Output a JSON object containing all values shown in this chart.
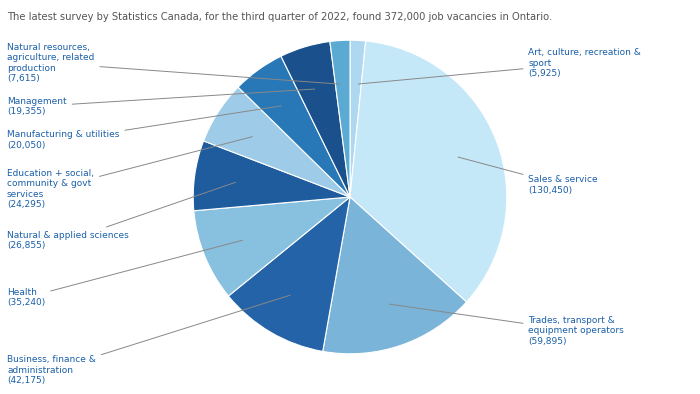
{
  "title": "The latest survey by Statistics Canada, for the third quarter of 2022, found 372,000 job vacancies in Ontario.",
  "sectors": [
    "Art, culture, recreation &\nsport",
    "Sales & service",
    "Trades, transport &\nequipment operators",
    "Business, finance &\nadministration",
    "Health",
    "Natural & applied sciences",
    "Education + social,\ncommunity & govt\nservices",
    "Manufacturing & utilities",
    "Management",
    "Natural resources,\nagriculture, related\nproduction"
  ],
  "values": [
    5925,
    130450,
    59895,
    42175,
    35240,
    26855,
    24295,
    20050,
    19355,
    7615
  ],
  "colors": [
    "#add8f0",
    "#c5e8f8",
    "#7ab4d8",
    "#2563a8",
    "#88c0e0",
    "#1e5c9e",
    "#9ecce8",
    "#2878b8",
    "#1a508c",
    "#5aaad4"
  ],
  "label_color": "#1a5fa8",
  "bg_color": "#ffffff",
  "title_color": "#555555"
}
